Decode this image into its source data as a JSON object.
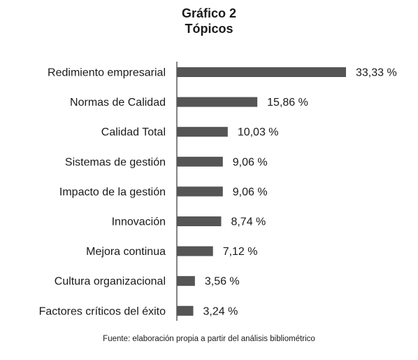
{
  "chart_data": {
    "type": "bar",
    "orientation": "horizontal",
    "title": "Gráfico 2",
    "subtitle": "Tópicos",
    "categories": [
      "Redimiento empresarial",
      "Normas de Calidad",
      "Calidad Total",
      "Sistemas de gestión",
      "Impacto de la gestión",
      "Innovación",
      "Mejora continua",
      "Cultura organizacional",
      "Factores críticos del éxito"
    ],
    "values": [
      33.33,
      15.86,
      10.03,
      9.06,
      9.06,
      8.74,
      7.12,
      3.56,
      3.24
    ],
    "value_labels": [
      "33,33 %",
      "15,86 %",
      "10,03 %",
      "9,06 %",
      "9,06 %",
      "8,74 %",
      "7,12 %",
      "3,56 %",
      "3,24 %"
    ],
    "unit": "%",
    "grid": false,
    "legend": "none",
    "bar_color": "#555555"
  },
  "source_note": "Fuente: elaboración propia a partir del análisis bibliométrico"
}
